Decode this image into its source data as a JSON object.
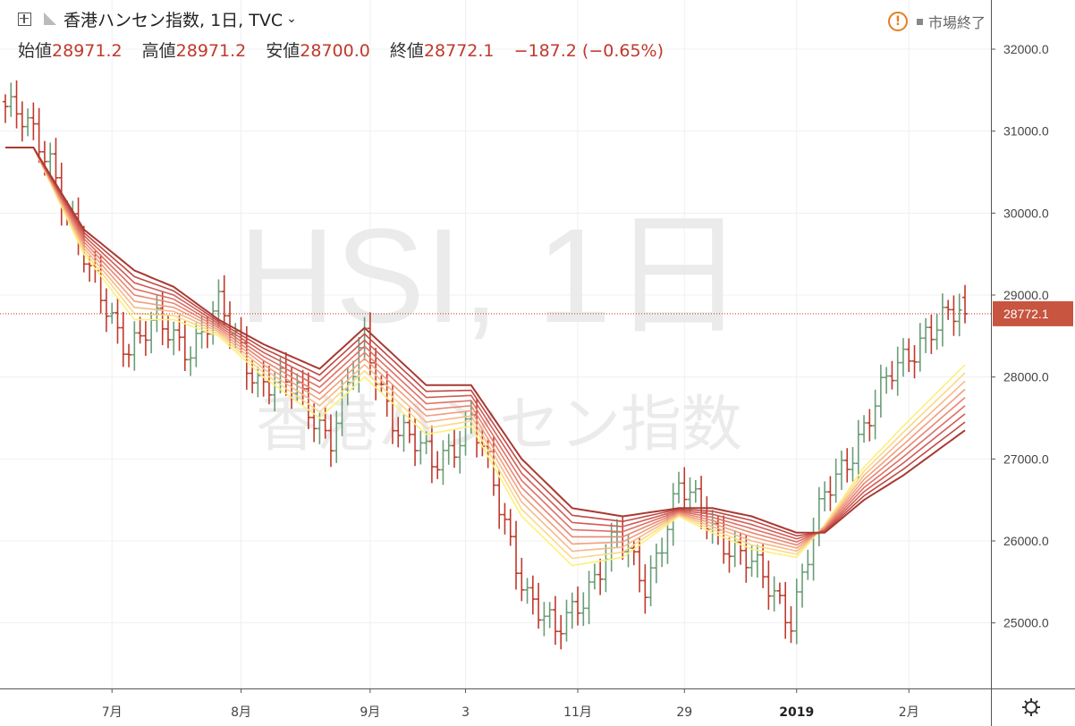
{
  "header": {
    "symbol": "香港ハンセン指数, 1日, TVC",
    "status_text": "市場終了",
    "ohlc": {
      "open_label": "始値",
      "open": "28971.2",
      "high_label": "高値",
      "high": "28971.2",
      "low_label": "安値",
      "low": "28700.0",
      "close_label": "終値",
      "close": "28772.1",
      "change": "−187.2 (−0.65%)"
    }
  },
  "watermark": {
    "line1": "HSI, 1日",
    "line2": "香港ハンセン指数"
  },
  "last_price_label": "28772.1",
  "colors": {
    "up": "#6a9d78",
    "down": "#c0392b",
    "ribbon": [
      "#fdf07a",
      "#fbd98a",
      "#f7b98a",
      "#f29e7e",
      "#e88672",
      "#de7065",
      "#d05c55",
      "#bf4a45",
      "#a83a32"
    ]
  },
  "chart_data": {
    "type": "ohlc",
    "title": "香港ハンセン指数",
    "ylim": [
      24200,
      32600
    ],
    "y_ticks": [
      "32000.0",
      "31000.0",
      "30000.0",
      "29000.0",
      "28000.0",
      "27000.0",
      "26000.0",
      "25000.0"
    ],
    "x_ticks": [
      "7月",
      "8月",
      "9月",
      "3",
      "11月",
      "29",
      "2019",
      "2月"
    ],
    "x_tick_indices": [
      19,
      42,
      65,
      82,
      102,
      121,
      141,
      161
    ],
    "last_price": 28772.1,
    "series_anchors": {
      "price_indices": [
        0,
        8,
        15,
        22,
        27,
        33,
        38,
        45,
        52,
        58,
        64,
        70,
        76,
        83,
        88,
        93,
        98,
        104,
        109,
        114,
        120,
        125,
        131,
        138,
        140,
        146,
        152,
        158,
        164,
        171
      ],
      "price_values": [
        31300,
        30700,
        29200,
        28400,
        28600,
        28400,
        28800,
        28000,
        27800,
        27300,
        28400,
        27400,
        26900,
        27500,
        26400,
        25400,
        24800,
        25500,
        26000,
        25500,
        26600,
        26300,
        25800,
        25300,
        25100,
        26500,
        27300,
        28000,
        28600,
        28750
      ],
      "ema_fast_indices": [
        0,
        5,
        14,
        23,
        30,
        38,
        46,
        56,
        64,
        75,
        83,
        92,
        101,
        110,
        120,
        126,
        133,
        141,
        146,
        153,
        160,
        171
      ],
      "ema_fast_values": [
        30800,
        30800,
        29500,
        28700,
        28700,
        28500,
        28000,
        27500,
        28000,
        27300,
        27400,
        26300,
        25700,
        25800,
        26300,
        26100,
        25900,
        25800,
        26200,
        26900,
        27400,
        28150
      ],
      "ema_slow_indices": [
        0,
        5,
        14,
        23,
        30,
        38,
        46,
        56,
        64,
        75,
        83,
        92,
        101,
        110,
        120,
        126,
        133,
        141,
        146,
        153,
        160,
        171
      ],
      "ema_slow_values": [
        30800,
        30800,
        29800,
        29300,
        29100,
        28700,
        28400,
        28100,
        28600,
        27900,
        27900,
        27000,
        26400,
        26300,
        26400,
        26400,
        26300,
        26100,
        26100,
        26500,
        26800,
        27350
      ]
    },
    "n_bars": 172,
    "ribbon_count": 9
  }
}
